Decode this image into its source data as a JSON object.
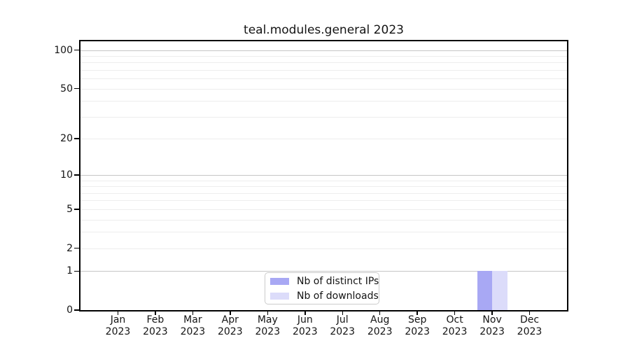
{
  "figure": {
    "title": "teal.modules.general 2023"
  },
  "chart_data": {
    "type": "bar",
    "title": "teal.modules.general 2023",
    "xlabel": "",
    "ylabel": "",
    "x_tick_months": [
      "Jan",
      "Feb",
      "Mar",
      "Apr",
      "May",
      "Jun",
      "Jul",
      "Aug",
      "Sep",
      "Oct",
      "Nov",
      "Dec"
    ],
    "x_tick_year": "2023",
    "series": [
      {
        "name": "Nb of distinct IPs",
        "color": "#a8a8f4",
        "values": [
          0,
          0,
          0,
          0,
          0,
          0,
          0,
          0,
          0,
          0,
          1,
          0
        ]
      },
      {
        "name": "Nb of downloads",
        "color": "#dcdcfa",
        "values": [
          0,
          0,
          0,
          0,
          0,
          0,
          0,
          0,
          0,
          0,
          1,
          0
        ]
      }
    ],
    "yscale": "log1p",
    "ylim": [
      0,
      117
    ],
    "yticks": [
      0,
      1,
      2,
      5,
      10,
      20,
      50,
      100
    ],
    "grid_major": [
      1,
      10,
      100
    ],
    "grid_minor": [
      2,
      3,
      4,
      5,
      6,
      7,
      8,
      9,
      20,
      30,
      40,
      50,
      60,
      70,
      80,
      90
    ],
    "legend_position": "lower center",
    "colors": {
      "grid_major": "#c6c6c6",
      "grid_minor": "#ededed",
      "spine": "#000000",
      "tick": "#000000"
    }
  }
}
